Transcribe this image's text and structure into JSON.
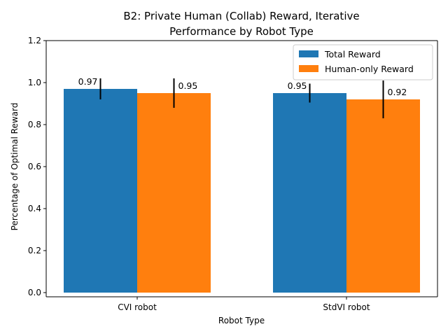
{
  "chart_data": {
    "type": "bar",
    "title_lines": [
      "B2: Private Human (Collab) Reward, Iterative",
      "Performance by Robot Type"
    ],
    "xlabel": "Robot Type",
    "ylabel": "Percentage of Optimal Reward",
    "categories": [
      "CVI robot",
      "StdVI robot"
    ],
    "ylim": [
      0,
      1.2
    ],
    "yticks": [
      0.0,
      0.2,
      0.4,
      0.6,
      0.8,
      1.0,
      1.2
    ],
    "ytick_labels": [
      "0.0",
      "0.2",
      "0.4",
      "0.6",
      "0.8",
      "1.0",
      "1.2"
    ],
    "grid": false,
    "legend_position": "top-right",
    "series": [
      {
        "name": "Total Reward",
        "color": "#1f77b4",
        "values": [
          0.97,
          0.95
        ],
        "errors": [
          0.05,
          0.045
        ],
        "value_labels": [
          "0.97",
          "0.95"
        ]
      },
      {
        "name": "Human-only Reward",
        "color": "#ff7f0e",
        "values": [
          0.95,
          0.92
        ],
        "errors": [
          0.07,
          0.09
        ],
        "value_labels": [
          "0.95",
          "0.92"
        ]
      }
    ]
  }
}
